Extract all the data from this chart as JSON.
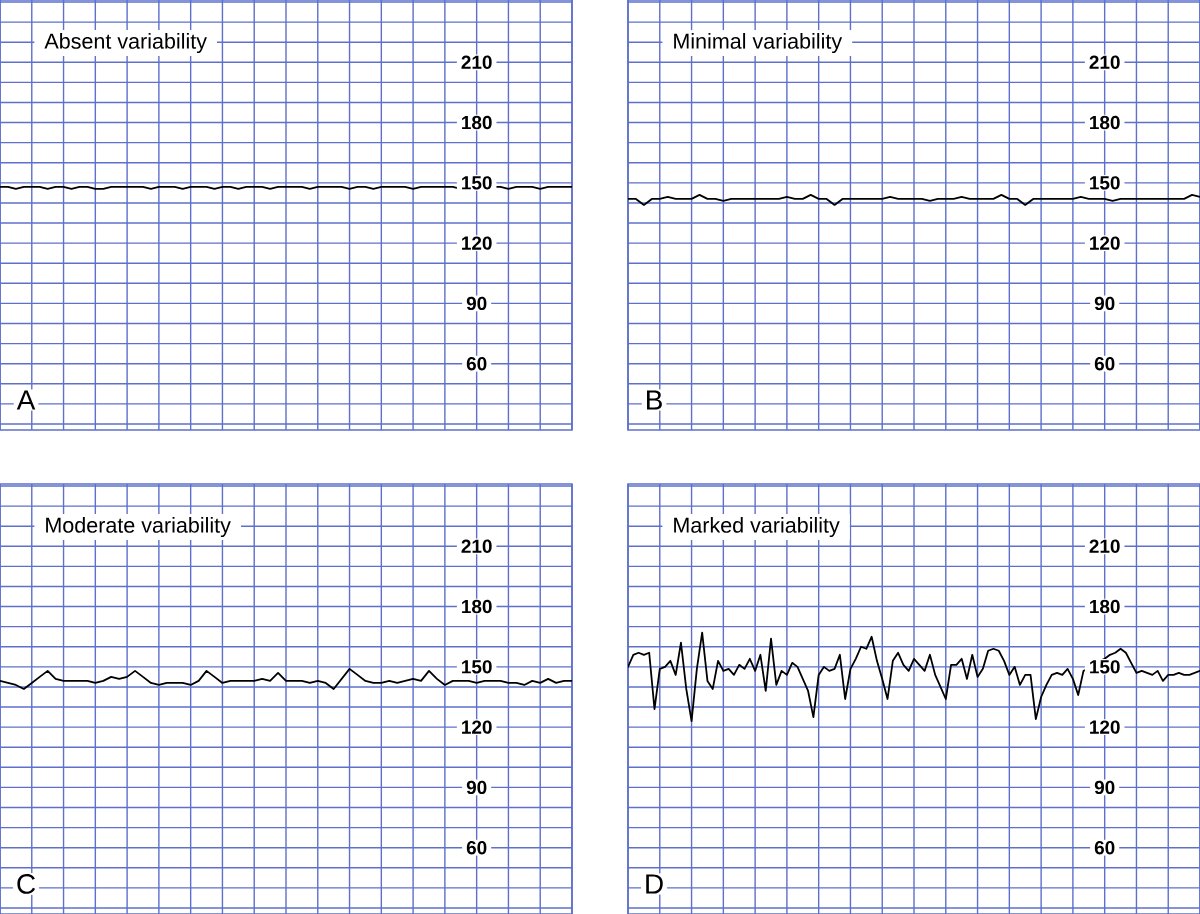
{
  "chart_data": [
    {
      "type": "line",
      "title": "Absent variability",
      "annotations": [
        "A"
      ],
      "categories": [
        null,
        null,
        null,
        null,
        null,
        null,
        null,
        null,
        null,
        null,
        null,
        null,
        null,
        null,
        null,
        null,
        null,
        null,
        null,
        null,
        null,
        null,
        null,
        null,
        null,
        null,
        null,
        null,
        null,
        null,
        null,
        null,
        null,
        null,
        null,
        null,
        null,
        null,
        null,
        null,
        null,
        null,
        null,
        null,
        null,
        null,
        null,
        null,
        null,
        null,
        null,
        null,
        null,
        null,
        null,
        null,
        null,
        null,
        null,
        null,
        null,
        null,
        null,
        null,
        null,
        null,
        null,
        null,
        null,
        null,
        null,
        null,
        null
      ],
      "values": [
        148,
        148,
        147,
        148,
        148,
        148,
        147,
        148,
        148,
        147,
        148,
        148,
        147,
        147,
        148,
        148,
        148,
        148,
        148,
        147,
        148,
        148,
        148,
        147,
        148,
        148,
        148,
        147,
        148,
        148,
        147,
        148,
        148,
        148,
        147,
        148,
        148,
        148,
        148,
        147,
        148,
        148,
        148,
        148,
        147,
        148,
        148,
        147,
        148,
        148,
        148,
        148,
        147,
        148,
        148,
        148,
        148,
        148,
        147,
        148,
        148,
        148,
        148,
        148,
        147,
        148,
        148,
        148,
        147,
        148,
        148,
        148,
        148
      ],
      "color": "#000000",
      "ylim": [
        27,
        241
      ],
      "yticks": [
        {
          "value": 30,
          "label": null
        },
        {
          "value": 40,
          "label": null
        },
        {
          "value": 50,
          "label": null
        },
        60,
        {
          "value": 70,
          "label": null
        },
        {
          "value": 80,
          "label": null
        },
        90,
        {
          "value": 100,
          "label": null
        },
        {
          "value": 110,
          "label": null
        },
        120,
        {
          "value": 130,
          "label": null
        },
        {
          "value": 140,
          "label": null
        },
        150,
        {
          "value": 160,
          "label": null
        },
        {
          "value": 170,
          "label": null
        },
        180,
        {
          "value": 190,
          "label": null
        },
        {
          "value": 200,
          "label": null
        },
        210,
        {
          "value": 220,
          "label": null
        },
        {
          "value": 230,
          "label": null
        },
        {
          "value": 240,
          "label": null
        }
      ],
      "grid": true
    },
    {
      "type": "line",
      "title": "Minimal variability",
      "annotations": [
        "B"
      ],
      "categories": [
        null,
        null,
        null,
        null,
        null,
        null,
        null,
        null,
        null,
        null,
        null,
        null,
        null,
        null,
        null,
        null,
        null,
        null,
        null,
        null,
        null,
        null,
        null,
        null,
        null,
        null,
        null,
        null,
        null,
        null,
        null,
        null,
        null,
        null,
        null,
        null,
        null,
        null,
        null,
        null,
        null,
        null,
        null,
        null,
        null,
        null,
        null,
        null,
        null,
        null,
        null,
        null,
        null,
        null,
        null,
        null,
        null,
        null,
        null,
        null,
        null,
        null,
        null,
        null,
        null,
        null,
        null,
        null,
        null,
        null,
        null,
        null,
        null
      ],
      "values": [
        142,
        142,
        139,
        142,
        142,
        143,
        142,
        142,
        142,
        144,
        142,
        142,
        141,
        142,
        142,
        142,
        142,
        142,
        142,
        142,
        143,
        142,
        142,
        144,
        142,
        142,
        139,
        142,
        142,
        142,
        142,
        142,
        142,
        143,
        142,
        142,
        142,
        142,
        141,
        142,
        142,
        142,
        143,
        142,
        142,
        142,
        142,
        144,
        142,
        142,
        139,
        142,
        142,
        142,
        142,
        142,
        142,
        143,
        142,
        142,
        142,
        141,
        142,
        142,
        142,
        142,
        142,
        142,
        142,
        142,
        142,
        144,
        143
      ],
      "color": "#000000",
      "ylim": [
        27,
        241
      ],
      "yticks": [
        {
          "value": 30,
          "label": null
        },
        {
          "value": 40,
          "label": null
        },
        {
          "value": 50,
          "label": null
        },
        60,
        {
          "value": 70,
          "label": null
        },
        {
          "value": 80,
          "label": null
        },
        90,
        {
          "value": 100,
          "label": null
        },
        {
          "value": 110,
          "label": null
        },
        120,
        {
          "value": 130,
          "label": null
        },
        {
          "value": 140,
          "label": null
        },
        150,
        {
          "value": 160,
          "label": null
        },
        {
          "value": 170,
          "label": null
        },
        180,
        {
          "value": 190,
          "label": null
        },
        {
          "value": 200,
          "label": null
        },
        210,
        {
          "value": 220,
          "label": null
        },
        {
          "value": 230,
          "label": null
        },
        {
          "value": 240,
          "label": null
        }
      ],
      "grid": true
    },
    {
      "type": "line",
      "title": "Moderate variability",
      "annotations": [
        "C"
      ],
      "categories": [
        null,
        null,
        null,
        null,
        null,
        null,
        null,
        null,
        null,
        null,
        null,
        null,
        null,
        null,
        null,
        null,
        null,
        null,
        null,
        null,
        null,
        null,
        null,
        null,
        null,
        null,
        null,
        null,
        null,
        null,
        null,
        null,
        null,
        null,
        null,
        null,
        null,
        null,
        null,
        null,
        null,
        null,
        null,
        null,
        null,
        null,
        null,
        null,
        null,
        null,
        null,
        null,
        null,
        null,
        null,
        null,
        null,
        null,
        null,
        null,
        null,
        null,
        null,
        null,
        null,
        null,
        null,
        null,
        null,
        null,
        null,
        null,
        null
      ],
      "values": [
        143,
        142,
        141,
        139,
        142,
        145,
        148,
        144,
        143,
        143,
        143,
        143,
        142,
        143,
        145,
        144,
        145,
        148,
        145,
        142,
        141,
        142,
        142,
        142,
        141,
        143,
        148,
        145,
        142,
        143,
        143,
        143,
        143,
        144,
        143,
        147,
        143,
        143,
        143,
        142,
        143,
        142,
        139,
        144,
        149,
        146,
        143,
        142,
        142,
        143,
        142,
        143,
        144,
        143,
        148,
        144,
        141,
        143,
        143,
        143,
        142,
        143,
        143,
        143,
        142,
        142,
        141,
        143,
        142,
        144,
        142,
        143,
        143
      ],
      "color": "#000000",
      "ylim": [
        27,
        241
      ],
      "yticks": [
        {
          "value": 30,
          "label": null
        },
        {
          "value": 40,
          "label": null
        },
        {
          "value": 50,
          "label": null
        },
        60,
        {
          "value": 70,
          "label": null
        },
        {
          "value": 80,
          "label": null
        },
        90,
        {
          "value": 100,
          "label": null
        },
        {
          "value": 110,
          "label": null
        },
        120,
        {
          "value": 130,
          "label": null
        },
        {
          "value": 140,
          "label": null
        },
        150,
        {
          "value": 160,
          "label": null
        },
        {
          "value": 170,
          "label": null
        },
        180,
        {
          "value": 190,
          "label": null
        },
        {
          "value": 200,
          "label": null
        },
        210,
        {
          "value": 220,
          "label": null
        },
        {
          "value": 230,
          "label": null
        },
        {
          "value": 240,
          "label": null
        }
      ],
      "grid": true
    },
    {
      "type": "line",
      "title": "Marked variability",
      "annotations": [
        "D"
      ],
      "categories": [
        null,
        null,
        null,
        null,
        null,
        null,
        null,
        null,
        null,
        null,
        null,
        null,
        null,
        null,
        null,
        null,
        null,
        null,
        null,
        null,
        null,
        null,
        null,
        null,
        null,
        null,
        null,
        null,
        null,
        null,
        null,
        null,
        null,
        null,
        null,
        null,
        null,
        null,
        null,
        null,
        null,
        null,
        null,
        null,
        null,
        null,
        null,
        null,
        null,
        null,
        null,
        null,
        null,
        null,
        null,
        null,
        null,
        null,
        null,
        null,
        null,
        null,
        null,
        null,
        null,
        null,
        null,
        null,
        null,
        null,
        null,
        null,
        null,
        null,
        null,
        null,
        null,
        null,
        null,
        null,
        null,
        null,
        null,
        null,
        null,
        null,
        null,
        null,
        null,
        null,
        null,
        null,
        null,
        null,
        null,
        null,
        null,
        null,
        null,
        null,
        null,
        null,
        null,
        null,
        null,
        null,
        null,
        null,
        null
      ],
      "values": [
        150,
        156,
        157,
        156,
        157,
        129,
        149,
        150,
        153,
        146,
        162,
        139,
        123,
        149,
        167,
        143,
        139,
        153,
        148,
        149,
        146,
        151,
        149,
        154,
        148,
        156,
        138,
        164,
        141,
        148,
        146,
        152,
        150,
        144,
        138,
        125,
        146,
        150,
        148,
        149,
        156,
        134,
        149,
        154,
        160,
        159,
        165,
        153,
        144,
        134,
        153,
        157,
        151,
        148,
        154,
        151,
        148,
        156,
        146,
        140,
        134,
        151,
        151,
        154,
        144,
        156,
        145,
        149,
        158,
        159,
        158,
        153,
        146,
        150,
        141,
        146,
        146,
        124,
        135,
        141,
        146,
        147,
        146,
        149,
        144,
        136,
        148,
        149,
        149,
        153,
        154,
        156,
        157,
        159,
        157,
        152,
        147,
        148,
        147,
        146,
        148,
        143,
        146,
        146,
        147,
        146,
        146,
        147,
        148
      ],
      "color": "#000000",
      "ylim": [
        27,
        241
      ],
      "yticks": [
        {
          "value": 30,
          "label": null
        },
        {
          "value": 40,
          "label": null
        },
        {
          "value": 50,
          "label": null
        },
        60,
        {
          "value": 70,
          "label": null
        },
        {
          "value": 80,
          "label": null
        },
        90,
        {
          "value": 100,
          "label": null
        },
        {
          "value": 110,
          "label": null
        },
        120,
        {
          "value": 130,
          "label": null
        },
        {
          "value": 140,
          "label": null
        },
        150,
        {
          "value": 160,
          "label": null
        },
        {
          "value": 170,
          "label": null
        },
        180,
        {
          "value": 190,
          "label": null
        },
        {
          "value": 200,
          "label": null
        },
        210,
        {
          "value": 220,
          "label": null
        },
        {
          "value": 230,
          "label": null
        },
        {
          "value": 240,
          "label": null
        }
      ],
      "grid": true
    }
  ]
}
